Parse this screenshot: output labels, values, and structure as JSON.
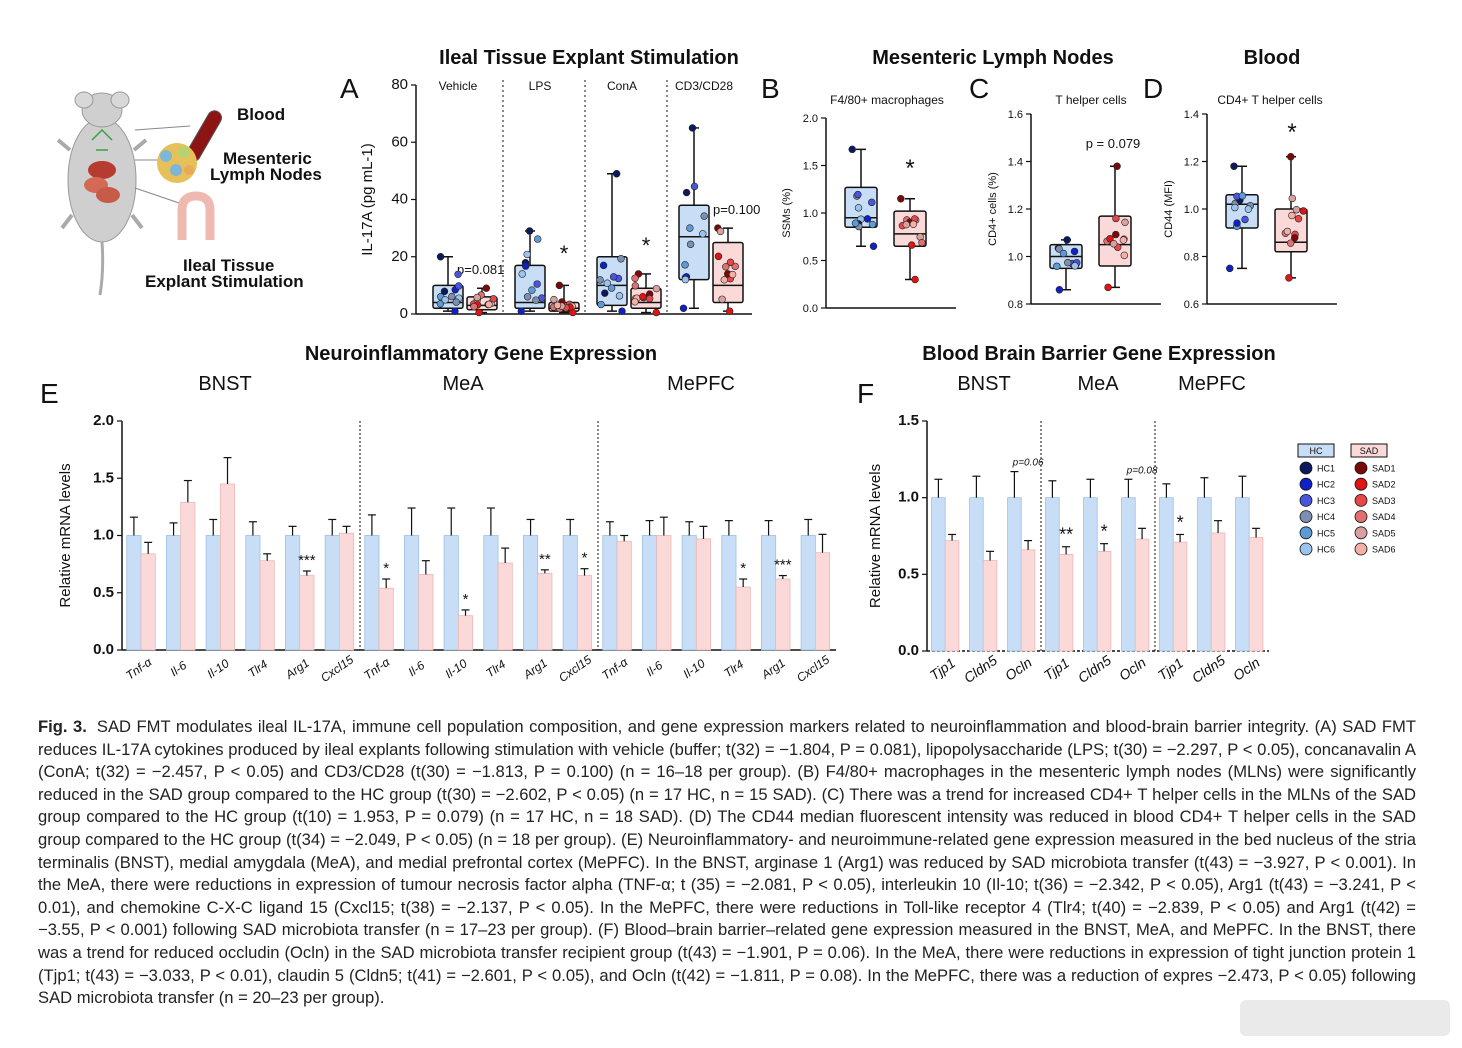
{
  "figure": {
    "illustration": {
      "labels": [
        "Blood",
        "Mesenteric",
        "Lymph Nodes",
        "Ileal Tissue",
        "Explant Stimulation"
      ]
    },
    "panelA": {
      "letter": "A",
      "section_title": "Ileal Tissue Explant Stimulation",
      "annotations": [
        "p=0.081",
        "*",
        "*",
        "p=0.100"
      ]
    },
    "panelB": {
      "letter": "B",
      "section_title": "Mesenteric Lymph Nodes",
      "annotation": "*"
    },
    "panelC": {
      "letter": "C",
      "annotation": "p = 0.079"
    },
    "panelD": {
      "letter": "D",
      "section_title": "Blood",
      "annotation": "*"
    },
    "panelE": {
      "letter": "E",
      "section_title": "Neuroinflammatory Gene Expression"
    },
    "panelF": {
      "letter": "F",
      "section_title": "Blood Brain Barrier Gene Expression"
    },
    "legend": {
      "hc_title": "HC",
      "sad_title": "SAD",
      "hc": [
        {
          "label": "HC1",
          "color": "#0b1a5c"
        },
        {
          "label": "HC2",
          "color": "#1020c8"
        },
        {
          "label": "HC3",
          "color": "#4a55dd"
        },
        {
          "label": "HC4",
          "color": "#7b8fb0"
        },
        {
          "label": "HC5",
          "color": "#5d9ad6"
        },
        {
          "label": "HC6",
          "color": "#9cc3ec"
        }
      ],
      "sad": [
        {
          "label": "SAD1",
          "color": "#7a0a0a"
        },
        {
          "label": "SAD2",
          "color": "#e01414"
        },
        {
          "label": "SAD3",
          "color": "#e54848"
        },
        {
          "label": "SAD4",
          "color": "#e07070"
        },
        {
          "label": "SAD5",
          "color": "#d9a0a0"
        },
        {
          "label": "SAD6",
          "color": "#f3b0a6"
        }
      ]
    }
  },
  "colors": {
    "hc_fill": "#c7def6",
    "hc_stroke": "#5d8fc4",
    "sad_fill": "#fbd9d8",
    "sad_stroke": "#d26060"
  },
  "chart_data": [
    {
      "panel": "A",
      "type": "box",
      "ylabel": "IL-17A (pg mL-1)",
      "ylim": [
        0,
        80
      ],
      "yticks": [
        0,
        20,
        40,
        60,
        80
      ],
      "groups": [
        "Vehicle",
        "LPS",
        "ConA",
        "CD3/CD28"
      ],
      "series": [
        {
          "name": "HC",
          "boxes": [
            {
              "min": 1,
              "q1": 2,
              "median": 4,
              "q3": 10,
              "max": 20
            },
            {
              "min": 1,
              "q1": 2,
              "median": 4,
              "q3": 17,
              "max": 29
            },
            {
              "min": 1,
              "q1": 3,
              "median": 10,
              "q3": 20,
              "max": 49
            },
            {
              "min": 2,
              "q1": 12,
              "median": 27,
              "q3": 38,
              "max": 65
            }
          ]
        },
        {
          "name": "SAD",
          "boxes": [
            {
              "min": 0.5,
              "q1": 1.5,
              "median": 3,
              "q3": 6,
              "max": 9
            },
            {
              "min": 0.5,
              "q1": 1,
              "median": 2,
              "q3": 4,
              "max": 10
            },
            {
              "min": 0.5,
              "q1": 2,
              "median": 4,
              "q3": 9,
              "max": 14
            },
            {
              "min": 1,
              "q1": 4,
              "median": 10,
              "q3": 25,
              "max": 30
            }
          ]
        }
      ]
    },
    {
      "panel": "B",
      "type": "box",
      "title": "F4/80+ macrophages",
      "ylabel": "SSMs (%)",
      "ylim": [
        0,
        2.0
      ],
      "yticks": [
        0.0,
        0.5,
        1.0,
        1.5,
        2.0
      ],
      "series": [
        {
          "name": "HC",
          "min": 0.65,
          "q1": 0.85,
          "median": 0.95,
          "q3": 1.27,
          "max": 1.67
        },
        {
          "name": "SAD",
          "min": 0.3,
          "q1": 0.65,
          "median": 0.78,
          "q3": 1.02,
          "max": 1.15
        }
      ]
    },
    {
      "panel": "C",
      "type": "box",
      "title": "T helper cells",
      "ylabel": "CD4+ cells (%)",
      "ylim": [
        0.8,
        1.6
      ],
      "yticks": [
        0.8,
        1.0,
        1.2,
        1.4,
        1.6
      ],
      "series": [
        {
          "name": "HC",
          "min": 0.86,
          "q1": 0.95,
          "median": 1.0,
          "q3": 1.05,
          "max": 1.07
        },
        {
          "name": "SAD",
          "min": 0.87,
          "q1": 0.96,
          "median": 1.05,
          "q3": 1.17,
          "max": 1.38
        }
      ]
    },
    {
      "panel": "D",
      "type": "box",
      "title": "CD4+ T helper cells",
      "ylabel": "CD44 (MFI)",
      "ylim": [
        0.6,
        1.4
      ],
      "yticks": [
        0.6,
        0.8,
        1.0,
        1.2,
        1.4
      ],
      "series": [
        {
          "name": "HC",
          "min": 0.75,
          "q1": 0.92,
          "median": 1.02,
          "q3": 1.06,
          "max": 1.18
        },
        {
          "name": "SAD",
          "min": 0.71,
          "q1": 0.82,
          "median": 0.86,
          "q3": 1.0,
          "max": 1.22
        }
      ]
    },
    {
      "panel": "E",
      "type": "bar",
      "ylabel": "Relative mRNA levels",
      "ylim": [
        0,
        2.0
      ],
      "yticks": [
        "0.0",
        "0.5",
        "1.0",
        "1.5",
        "2.0"
      ],
      "regions": [
        "BNST",
        "MeA",
        "MePFC"
      ],
      "categories": [
        "Tnf-α",
        "Il-6",
        "Il-10",
        "Tlr4",
        "Arg1",
        "Cxcl15"
      ],
      "series": [
        {
          "name": "HC",
          "values": [
            [
              1,
              1,
              1,
              1,
              1,
              1
            ],
            [
              1,
              1,
              1,
              1,
              1,
              1
            ],
            [
              1,
              1,
              1,
              1,
              1,
              1
            ]
          ],
          "errors": [
            [
              0.16,
              0.11,
              0.14,
              0.12,
              0.08,
              0.14
            ],
            [
              0.18,
              0.24,
              0.24,
              0.24,
              0.14,
              0.14
            ],
            [
              0.12,
              0.13,
              0.12,
              0.13,
              0.13,
              0.14
            ]
          ]
        },
        {
          "name": "SAD",
          "values": [
            [
              0.84,
              1.29,
              1.45,
              0.78,
              0.65,
              1.02
            ],
            [
              0.54,
              0.66,
              0.3,
              0.76,
              0.67,
              0.65
            ],
            [
              0.95,
              1.0,
              0.97,
              0.55,
              0.62,
              0.85
            ]
          ],
          "errors": [
            [
              0.1,
              0.19,
              0.23,
              0.06,
              0.04,
              0.06
            ],
            [
              0.08,
              0.12,
              0.05,
              0.13,
              0.03,
              0.06
            ],
            [
              0.05,
              0.16,
              0.11,
              0.07,
              0.03,
              0.16
            ]
          ]
        }
      ],
      "significance": [
        [
          "",
          "",
          "",
          "",
          "***",
          ""
        ],
        [
          "*",
          "",
          "*",
          "",
          "**",
          "*"
        ],
        [
          "",
          "",
          "",
          "*",
          "***",
          ""
        ]
      ]
    },
    {
      "panel": "F",
      "type": "bar",
      "ylabel": "Relative mRNA levels",
      "ylim": [
        0,
        1.5
      ],
      "yticks": [
        "0.0",
        "0.5",
        "1.0",
        "1.5"
      ],
      "regions": [
        "BNST",
        "MeA",
        "MePFC"
      ],
      "categories": [
        [
          "Tjp1",
          "Cldn5",
          "Ocln"
        ],
        [
          "Tjp1",
          "Cldn5",
          "Ocln"
        ],
        [
          "Tjp1",
          "Cldn5",
          "Ocln"
        ]
      ],
      "series": [
        {
          "name": "HC",
          "values": [
            [
              1,
              1,
              1
            ],
            [
              1,
              1,
              1
            ],
            [
              1,
              1,
              1
            ]
          ],
          "errors": [
            [
              0.12,
              0.14,
              0.17
            ],
            [
              0.11,
              0.12,
              0.12
            ],
            [
              0.09,
              0.13,
              0.14
            ]
          ]
        },
        {
          "name": "SAD",
          "values": [
            [
              0.72,
              0.59,
              0.66
            ],
            [
              0.63,
              0.65,
              0.73
            ],
            [
              0.71,
              0.77,
              0.74
            ]
          ],
          "errors": [
            [
              0.04,
              0.06,
              0.06
            ],
            [
              0.05,
              0.05,
              0.07
            ],
            [
              0.05,
              0.08,
              0.06
            ]
          ]
        }
      ],
      "significance": [
        [
          "",
          "",
          ""
        ],
        [
          "**",
          "*",
          ""
        ],
        [
          "*",
          "",
          ""
        ]
      ],
      "trend_labels": [
        [
          "",
          "",
          "p=0.06"
        ],
        [
          "",
          "",
          "p=0.08"
        ],
        [
          "",
          "",
          ""
        ]
      ]
    }
  ],
  "caption": {
    "label": "Fig. 3.",
    "text": "SAD FMT modulates ileal IL-17A, immune cell population composition, and gene expression markers related to neuroinflammation and blood-brain barrier integrity. (A) SAD FMT reduces IL-17A cytokines produced by ileal explants following stimulation with vehicle (buffer; t(32) = −1.804, P = 0.081), lipopolysaccharide (LPS; t(30) = −2.297, P < 0.05), concanavalin A (ConA; t(32) = −2.457, P < 0.05) and CD3/CD28 (t(30) = −1.813, P = 0.100) (n = 16–18 per group). (B) F4/80+ macrophages in the mesenteric lymph nodes (MLNs) were significantly reduced in the SAD group compared to the HC group (t(30) = −2.602, P < 0.05) (n = 17 HC, n = 15 SAD). (C) There was a trend for increased CD4+ T helper cells in the MLNs of the SAD group compared to the HC group (t(10) = 1.953, P = 0.079) (n = 17 HC, n = 18 SAD). (D) The CD44 median fluorescent intensity was reduced in blood CD4+ T helper cells in the SAD group compared to the HC group (t(34) = −2.049, P < 0.05) (n = 18 per group). (E) Neuroinflammatory- and neuroimmune-related gene expression measured in the bed nucleus of the stria terminalis (BNST), medial amygdala (MeA), and medial prefrontal cortex (MePFC). In the BNST, arginase 1 (Arg1) was reduced by SAD microbiota transfer (t(43) = −3.927, P < 0.001). In the MeA, there were reductions in expression of tumour necrosis factor alpha (TNF-α; t (35) = −2.081, P < 0.05), interleukin 10 (Il-10; t(36) = −2.342, P < 0.05), Arg1 (t(43) = −3.241, P < 0.01), and chemokine C-X-C ligand 15 (Cxcl15; t(38) = −2.137, P < 0.05). In the MePFC, there were reductions in Toll-like receptor 4 (Tlr4; t(40) = −2.839, P < 0.05) and Arg1 (t(42) = −3.55, P < 0.001) following SAD microbiota transfer (n = 17–23 per group). (F) Blood–brain barrier–related gene expression measured in the BNST, MeA, and MePFC. In the BNST, there was a trend for reduced occludin (Ocln) in the SAD microbiota transfer recipient group (t(43) = −1.901, P = 0.06). In the MeA, there were reductions in expression of tight junction protein 1 (Tjp1; t(43) = −3.033, P < 0.01), claudin 5 (Cldn5; t(41) = −2.601, P < 0.05), and Ocln (t(42) = −1.811, P = 0.08). In the MePFC, there was a reduction of expres −2.473, P < 0.05) following SAD microbiota transfer (n = 20–23 per group)."
  }
}
